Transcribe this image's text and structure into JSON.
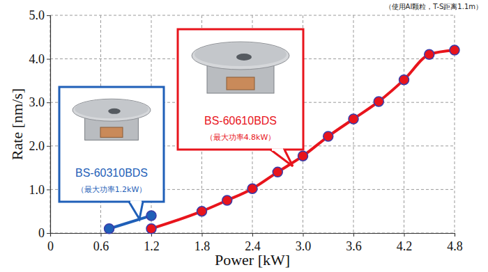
{
  "chart_data": {
    "type": "line",
    "x_label": "Power [kW]",
    "y_label": "Rate [nm/s]",
    "annotations": [
      "（使用Al颗粒，T-S距离1.1m）",
      "（最大功率1.2kW）",
      "（最大功率4.8kW）"
    ],
    "xlim": [
      0,
      4.8
    ],
    "xticks": [
      0,
      0.6,
      1.2,
      1.8,
      2.4,
      {
        "value": 3,
        "label": "3.0"
      },
      3.6,
      4.2,
      4.8
    ],
    "ylim": [
      0,
      5
    ],
    "yticks": [
      0,
      {
        "value": 1,
        "label": "1.0"
      },
      {
        "value": 2,
        "label": "2.0"
      },
      {
        "value": 3,
        "label": "3.0"
      },
      {
        "value": 4,
        "label": "4.0"
      },
      {
        "value": 5,
        "label": "5.0"
      }
    ],
    "grid": true,
    "marker": "circle",
    "series": [
      {
        "name": "BS-60310BDS",
        "color": "#1f5fb8",
        "line_style": "straight",
        "x": [
          0.7,
          1.2
        ],
        "values": [
          0.1,
          0.4
        ]
      },
      {
        "name": "BS-60610BDS",
        "color": "#e8141c",
        "line_style": "curved",
        "x": [
          1.2,
          1.8,
          2.1,
          2.4,
          2.7,
          3.0,
          3.3,
          3.6,
          3.9,
          4.2,
          4.5,
          4.8
        ],
        "values": [
          0.1,
          0.5,
          0.75,
          1.02,
          1.4,
          1.77,
          2.22,
          2.62,
          3.02,
          3.52,
          4.1,
          4.2
        ]
      }
    ]
  }
}
